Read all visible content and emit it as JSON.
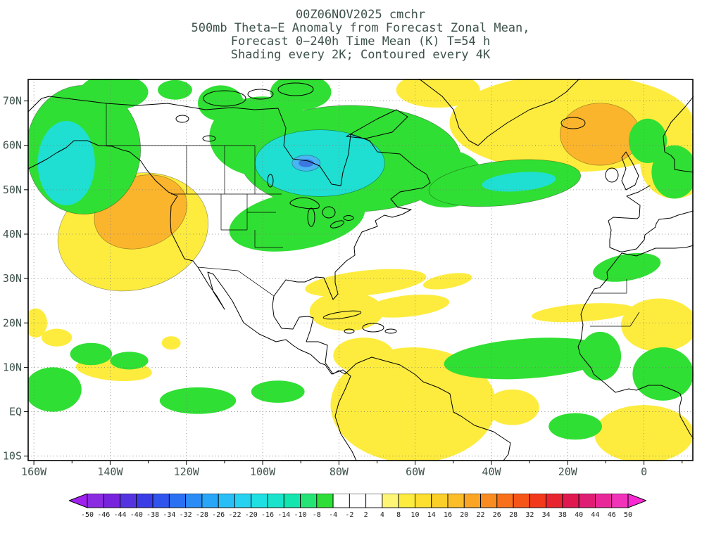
{
  "style": {
    "ink_color": "#3e524b"
  },
  "title": {
    "line1": "00Z06NOV2025 cmchr",
    "line2": "500mb Theta−E Anomaly from Forecast Zonal Mean,",
    "line3": "Forecast 0−240h Time Mean (K) T=54 h",
    "line4": "Shading every 2K; Contoured every 4K"
  },
  "chart_data": {
    "type": "heatmap",
    "title": "500mb Theta-E Anomaly from Forecast Zonal Mean, Forecast 0-240h Time Mean (K) T=54 h",
    "shading_interval_K": 2,
    "contour_interval_K": 4,
    "projection": {
      "lon_range": [
        -161.5,
        13
      ],
      "lat_range": [
        -11,
        75
      ]
    },
    "x_axis": {
      "tick_labels": [
        "160W",
        "140W",
        "120W",
        "100W",
        "80W",
        "60W",
        "40W",
        "20W",
        "0"
      ],
      "tick_lons": [
        -160,
        -140,
        -120,
        -100,
        -80,
        -60,
        -40,
        -20,
        0
      ],
      "minor_tick_lons": [
        -150,
        -130,
        -110,
        -90,
        -70,
        -50,
        -30,
        -10,
        10
      ]
    },
    "y_axis": {
      "tick_labels": [
        "70N",
        "60N",
        "50N",
        "40N",
        "30N",
        "20N",
        "10N",
        "EQ",
        "10S"
      ],
      "tick_lats": [
        70,
        60,
        50,
        40,
        30,
        20,
        10,
        0,
        -10
      ]
    },
    "colorbar": {
      "tick_labels": [
        "-50",
        "-46",
        "-44",
        "-40",
        "-38",
        "-34",
        "-32",
        "-28",
        "-26",
        "-22",
        "-20",
        "-16",
        "-14",
        "-10",
        "-8",
        "-4",
        "-2",
        "2",
        "4",
        "8",
        "10",
        "14",
        "16",
        "20",
        "22",
        "26",
        "28",
        "32",
        "34",
        "38",
        "40",
        "44",
        "46",
        "50"
      ],
      "colors": [
        "#a020f0",
        "#8a2be2",
        "#7722dd",
        "#5533e0",
        "#3a3de6",
        "#2f55ec",
        "#2a70f2",
        "#2b8cf6",
        "#2aa6f8",
        "#29bef6",
        "#27d2f0",
        "#1fdfe2",
        "#19e4cb",
        "#12e5ad",
        "#25e476",
        "#2ede38",
        "#ffffff",
        "#ffffff",
        "#ffffff",
        "#fdf576",
        "#fdec3d",
        "#fcdf30",
        "#fccf28",
        "#fbbd2a",
        "#fba526",
        "#f98c20",
        "#f8701c",
        "#f65518",
        "#f23a1a",
        "#e82430",
        "#e01850",
        "#e01d74",
        "#e82898",
        "#f033b8",
        "#fa28d2"
      ]
    },
    "palette": {
      "green": "#30df33",
      "cyan": "#1fdfd2",
      "blue": "#49b6f2",
      "blue2": "#3b77e0",
      "yellow": "#fdec3e",
      "orange": "#fbb52d"
    },
    "regions": [
      {
        "name": "natl-broad",
        "c": "yellow",
        "lon": -19,
        "lat": 65,
        "dlon": 32,
        "dlat": 11
      },
      {
        "name": "natl-east-edge",
        "c": "yellow",
        "lon": 8,
        "lat": 56,
        "dlon": 9,
        "dlat": 8
      },
      {
        "name": "arctic-strip",
        "c": "yellow",
        "lon": -54,
        "lat": 72.5,
        "dlon": 11,
        "dlat": 4
      },
      {
        "name": "epac-west-us",
        "c": "yellow",
        "lon": -134,
        "lat": 40.5,
        "dlon": 20,
        "dlat": 13,
        "rot": -15,
        "k": 1
      },
      {
        "name": "subtrop-streak-a",
        "c": "yellow",
        "lon": -73,
        "lat": 29,
        "dlon": 16,
        "dlat": 2.8,
        "rot": -6
      },
      {
        "name": "subtrop-streak-b",
        "c": "yellow",
        "lon": -62,
        "lat": 23.8,
        "dlon": 11,
        "dlat": 2.4,
        "rot": -6
      },
      {
        "name": "subtrop-streak-c",
        "c": "yellow",
        "lon": -51.5,
        "lat": 29.4,
        "dlon": 6.5,
        "dlat": 1.6,
        "rot": -10
      },
      {
        "name": "caribbean",
        "c": "yellow",
        "lon": -78,
        "lat": 22.6,
        "dlon": 9.7,
        "dlat": 4.4
      },
      {
        "name": "south-america",
        "c": "yellow",
        "lon": -60.5,
        "lat": 1.5,
        "dlon": 21.7,
        "dlat": 13
      },
      {
        "name": "venezuela",
        "c": "yellow",
        "lon": -73.5,
        "lat": 12.7,
        "dlon": 8,
        "dlat": 4
      },
      {
        "name": "sahara",
        "c": "yellow",
        "lon": 4,
        "lat": 19.5,
        "dlon": 10,
        "dlat": 6
      },
      {
        "name": "wafrica-streak",
        "c": "yellow",
        "lon": -16,
        "lat": 22.3,
        "dlon": 13.5,
        "dlat": 2,
        "rot": -4
      },
      {
        "name": "satl-se",
        "c": "yellow",
        "lon": 0,
        "lat": -5,
        "dlon": 13,
        "dlat": 6.5
      },
      {
        "name": "matl-eq",
        "c": "yellow",
        "lon": -34.5,
        "lat": 1,
        "dlon": 7,
        "dlat": 4
      },
      {
        "name": "cpac-streak-a",
        "c": "yellow",
        "lon": -154,
        "lat": 16.7,
        "dlon": 4,
        "dlat": 2
      },
      {
        "name": "cpac-streak-b",
        "c": "yellow",
        "lon": -139,
        "lat": 9.5,
        "dlon": 10,
        "dlat": 2.5,
        "rot": 5
      },
      {
        "name": "cpac-streak-c",
        "c": "yellow",
        "lon": -124,
        "lat": 15.5,
        "dlon": 2.5,
        "dlat": 1.5
      },
      {
        "name": "left-edge",
        "c": "yellow",
        "lon": -159.5,
        "lat": 20,
        "dlon": 3,
        "dlat": 3.3
      },
      {
        "name": "west-us-core",
        "c": "orange",
        "lon": -132,
        "lat": 45,
        "dlon": 12.5,
        "dlat": 8,
        "rot": -20,
        "k": 1
      },
      {
        "name": "iceland-core",
        "c": "orange",
        "lon": -11.5,
        "lat": 62.5,
        "dlon": 10.5,
        "dlat": 7,
        "k": 1
      },
      {
        "name": "alaska",
        "c": "green",
        "lon": -147,
        "lat": 59,
        "dlon": 15,
        "dlat": 14.5,
        "k": 1
      },
      {
        "name": "alaska-arctic-arm",
        "c": "green",
        "lon": -139,
        "lat": 72,
        "dlon": 9,
        "dlat": 4
      },
      {
        "name": "arctic-islands-a",
        "c": "green",
        "lon": -123,
        "lat": 72.5,
        "dlon": 4.5,
        "dlat": 2.2
      },
      {
        "name": "arctic-islands-b",
        "c": "green",
        "lon": -111,
        "lat": 69.5,
        "dlon": 6,
        "dlat": 4
      },
      {
        "name": "canada",
        "c": "green",
        "lon": -77,
        "lat": 57,
        "dlon": 29,
        "dlat": 12,
        "k": 1
      },
      {
        "name": "canada-nw",
        "c": "green",
        "lon": -100,
        "lat": 62,
        "dlon": 14,
        "dlat": 9
      },
      {
        "name": "canada-top",
        "c": "green",
        "lon": -90,
        "lat": 72,
        "dlon": 8,
        "dlat": 4
      },
      {
        "name": "midwest-arm",
        "c": "green",
        "lon": -91,
        "lat": 43,
        "dlon": 18,
        "dlat": 6.5,
        "rot": -10
      },
      {
        "name": "newfoundland-arm",
        "c": "green",
        "lon": -52,
        "lat": 52.5,
        "dlon": 10,
        "dlat": 6.5
      },
      {
        "name": "natl-band",
        "c": "green",
        "lon": -36.5,
        "lat": 51.5,
        "dlon": 20,
        "dlat": 5,
        "rot": -6,
        "k": 1
      },
      {
        "name": "nw-europe-a",
        "c": "green",
        "lon": 1,
        "lat": 61,
        "dlon": 5,
        "dlat": 5
      },
      {
        "name": "nw-europe-b",
        "c": "green",
        "lon": 8,
        "lat": 54,
        "dlon": 6,
        "dlat": 6
      },
      {
        "name": "nw-africa",
        "c": "green",
        "lon": -4.5,
        "lat": 32.5,
        "dlon": 9,
        "dlat": 3,
        "rot": -10
      },
      {
        "name": "trop-atl-band",
        "c": "green",
        "lon": -30.5,
        "lat": 12,
        "dlon": 22,
        "dlat": 4.5,
        "rot": -4
      },
      {
        "name": "wafrica-coast",
        "c": "green",
        "lon": -11.5,
        "lat": 12.5,
        "dlon": 5.5,
        "dlat": 5.5
      },
      {
        "name": "eq-africa",
        "c": "green",
        "lon": 5,
        "lat": 8.5,
        "dlon": 8,
        "dlat": 6
      },
      {
        "name": "cpac-a",
        "c": "green",
        "lon": -155,
        "lat": 5,
        "dlon": 7.5,
        "dlat": 5
      },
      {
        "name": "cpac-b",
        "c": "green",
        "lon": -145,
        "lat": 13,
        "dlon": 5.5,
        "dlat": 2.5
      },
      {
        "name": "cpac-c",
        "c": "green",
        "lon": -135,
        "lat": 11.5,
        "dlon": 5,
        "dlat": 2
      },
      {
        "name": "epac-eq",
        "c": "green",
        "lon": -117,
        "lat": 2.5,
        "dlon": 10,
        "dlat": 3
      },
      {
        "name": "cam-pacific",
        "c": "green",
        "lon": -96,
        "lat": 4.5,
        "dlon": 7,
        "dlat": 2.5
      },
      {
        "name": "satl",
        "c": "green",
        "lon": -18,
        "lat": -3.3,
        "dlon": 7,
        "dlat": 3
      },
      {
        "name": "alaska-core",
        "c": "cyan",
        "lon": -151.5,
        "lat": 56,
        "dlon": 7.5,
        "dlat": 9.5
      },
      {
        "name": "canada-core",
        "c": "cyan",
        "lon": -85,
        "lat": 56,
        "dlon": 17,
        "dlat": 7.5,
        "k": 1
      },
      {
        "name": "natl-band-core",
        "c": "cyan",
        "lon": -32.8,
        "lat": 51.8,
        "dlon": 9.7,
        "dlat": 2.1,
        "rot": -5
      },
      {
        "name": "canada-min",
        "c": "blue",
        "lon": -88.6,
        "lat": 56,
        "dlon": 3.7,
        "dlat": 1.8,
        "k": 1
      },
      {
        "name": "canada-min-core",
        "c": "blue2",
        "lon": -88.6,
        "lat": 56,
        "dlon": 2,
        "dlat": 0.9
      }
    ]
  }
}
